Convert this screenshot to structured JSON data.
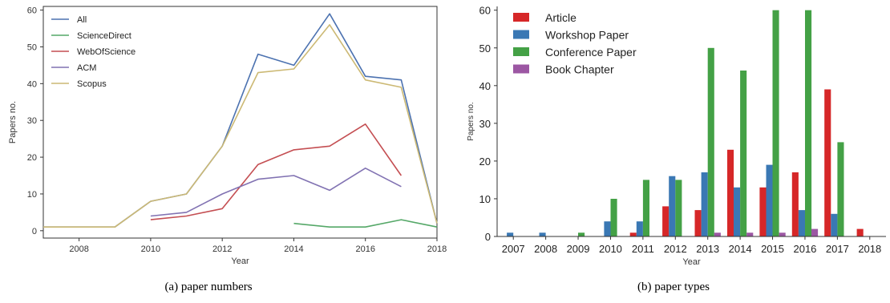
{
  "chart_data": [
    {
      "type": "line",
      "title": "",
      "xlabel": "Year",
      "ylabel": "Papers no.",
      "xlim": [
        2007,
        2018
      ],
      "ylim": [
        -2,
        61
      ],
      "xticks": [
        2008,
        2010,
        2012,
        2014,
        2016,
        2018
      ],
      "yticks": [
        0,
        10,
        20,
        30,
        40,
        50,
        60
      ],
      "grid": false,
      "legend_position": "top-left",
      "series": [
        {
          "name": "All",
          "color": "#4c72b0",
          "x": [
            2007,
            2008,
            2009,
            2010,
            2011,
            2012,
            2013,
            2014,
            2015,
            2016,
            2017,
            2018
          ],
          "values": [
            1,
            1,
            1,
            8,
            10,
            23,
            48,
            45,
            59,
            42,
            41,
            2
          ]
        },
        {
          "name": "ScienceDirect",
          "color": "#55a868",
          "x": [
            2014,
            2015,
            2016,
            2017,
            2018
          ],
          "values": [
            2,
            1,
            1,
            3,
            1
          ]
        },
        {
          "name": "WebOfScience",
          "color": "#c44e52",
          "x": [
            2010,
            2011,
            2012,
            2013,
            2014,
            2015,
            2016,
            2017
          ],
          "values": [
            3,
            4,
            6,
            18,
            22,
            23,
            29,
            15
          ]
        },
        {
          "name": "ACM",
          "color": "#8172b2",
          "x": [
            2010,
            2011,
            2012,
            2013,
            2014,
            2015,
            2016,
            2017
          ],
          "values": [
            4,
            5,
            10,
            14,
            15,
            11,
            17,
            12
          ]
        },
        {
          "name": "Scopus",
          "color": "#ccb974",
          "x": [
            2007,
            2008,
            2009,
            2010,
            2011,
            2012,
            2013,
            2014,
            2015,
            2016,
            2017,
            2018
          ],
          "values": [
            1,
            1,
            1,
            8,
            10,
            23,
            43,
            44,
            56,
            41,
            39,
            2
          ]
        }
      ]
    },
    {
      "type": "bar",
      "title": "",
      "xlabel": "Year",
      "ylabel": "Papers no.",
      "ylim": [
        0,
        61
      ],
      "yticks": [
        0,
        10,
        20,
        30,
        40,
        50,
        60
      ],
      "grid": false,
      "legend_position": "top-left",
      "categories": [
        "2007",
        "2008",
        "2009",
        "2010",
        "2011",
        "2012",
        "2013",
        "2014",
        "2015",
        "2016",
        "2017",
        "2018"
      ],
      "series": [
        {
          "name": "Article",
          "color": "#d62728",
          "values": [
            0,
            0,
            0,
            0,
            1,
            8,
            7,
            23,
            13,
            17,
            39,
            2
          ]
        },
        {
          "name": "Workshop Paper",
          "color": "#3a78b4",
          "values": [
            1,
            1,
            0,
            4,
            4,
            16,
            17,
            13,
            19,
            7,
            6,
            0
          ]
        },
        {
          "name": "Conference Paper",
          "color": "#44a146",
          "values": [
            0,
            0,
            1,
            10,
            15,
            15,
            50,
            44,
            60,
            60,
            25,
            0
          ]
        },
        {
          "name": "Book Chapter",
          "color": "#9c57a3",
          "values": [
            0,
            0,
            0,
            0,
            0,
            0,
            1,
            1,
            1,
            2,
            0,
            0
          ]
        }
      ]
    }
  ],
  "captions": {
    "a": "(a) paper numbers",
    "b": "(b) paper types"
  }
}
